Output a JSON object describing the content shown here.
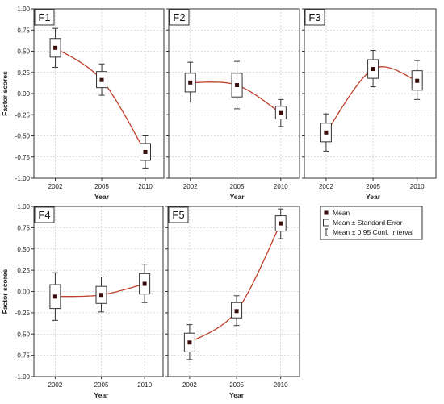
{
  "chart_data": [
    {
      "type": "box",
      "title": "F1",
      "xlabel": "Year",
      "ylabel": "Factor scores",
      "categories": [
        "2002",
        "2005",
        "2010"
      ],
      "mean": [
        0.54,
        0.16,
        -0.69
      ],
      "se_low": [
        0.43,
        0.07,
        -0.79
      ],
      "se_high": [
        0.65,
        0.26,
        -0.59
      ],
      "ci_low": [
        0.31,
        -0.02,
        -0.88
      ],
      "ci_high": [
        0.77,
        0.35,
        -0.5
      ],
      "ylim": [
        -1.0,
        1.0
      ],
      "yticks": [
        "1.00",
        "0.75",
        "0.50",
        "0.25",
        "0.00",
        "-0.25",
        "-0.50",
        "-0.75",
        "-1.00"
      ]
    },
    {
      "type": "box",
      "title": "F2",
      "xlabel": "Year",
      "ylabel": "",
      "categories": [
        "2002",
        "2005",
        "2010"
      ],
      "mean": [
        0.13,
        0.1,
        -0.23
      ],
      "se_low": [
        0.02,
        -0.04,
        -0.3
      ],
      "se_high": [
        0.24,
        0.24,
        -0.15
      ],
      "ci_low": [
        -0.1,
        -0.18,
        -0.39
      ],
      "ci_high": [
        0.37,
        0.38,
        -0.07
      ],
      "ylim": [
        -1.0,
        1.0
      ]
    },
    {
      "type": "box",
      "title": "F3",
      "xlabel": "Year",
      "ylabel": "",
      "categories": [
        "2002",
        "2005",
        "2010"
      ],
      "mean": [
        -0.46,
        0.29,
        0.15
      ],
      "se_low": [
        -0.57,
        0.18,
        0.04
      ],
      "se_high": [
        -0.35,
        0.4,
        0.27
      ],
      "ci_low": [
        -0.68,
        0.08,
        -0.07
      ],
      "ci_high": [
        -0.24,
        0.51,
        0.39
      ],
      "ylim": [
        -1.0,
        1.0
      ]
    },
    {
      "type": "box",
      "title": "F4",
      "xlabel": "Year",
      "ylabel": "Factor scores",
      "categories": [
        "2002",
        "2005",
        "2010"
      ],
      "mean": [
        -0.06,
        -0.04,
        0.09
      ],
      "se_low": [
        -0.2,
        -0.14,
        -0.03
      ],
      "se_high": [
        0.08,
        0.06,
        0.21
      ],
      "ci_low": [
        -0.34,
        -0.24,
        -0.13
      ],
      "ci_high": [
        0.22,
        0.17,
        0.32
      ],
      "ylim": [
        -1.0,
        1.0
      ],
      "yticks": [
        "1.00",
        "0.75",
        "0.50",
        "0.25",
        "0.00",
        "-0.25",
        "-0.50",
        "-0.75",
        "-1.00"
      ]
    },
    {
      "type": "box",
      "title": "F5",
      "xlabel": "Year",
      "ylabel": "",
      "categories": [
        "2002",
        "2005",
        "2010"
      ],
      "mean": [
        -0.6,
        -0.23,
        0.8
      ],
      "se_low": [
        -0.71,
        -0.31,
        0.71
      ],
      "se_high": [
        -0.49,
        -0.13,
        0.89
      ],
      "ci_low": [
        -0.8,
        -0.4,
        0.62
      ],
      "ci_high": [
        -0.39,
        -0.05,
        0.97
      ],
      "ylim": [
        -1.0,
        1.0
      ]
    }
  ],
  "legend": {
    "items": [
      {
        "label": "Mean",
        "icon": "mean-square-icon"
      },
      {
        "label": "Mean ± Standard Error",
        "icon": "se-box-icon"
      },
      {
        "label": "Mean ± 0.95 Conf. Interval",
        "icon": "ci-whisker-icon"
      }
    ]
  },
  "colors": {
    "curve": "#c0402a",
    "mean_marker": "#3a0d0d",
    "frame": "#333333",
    "grid": "#bdbdbd"
  }
}
